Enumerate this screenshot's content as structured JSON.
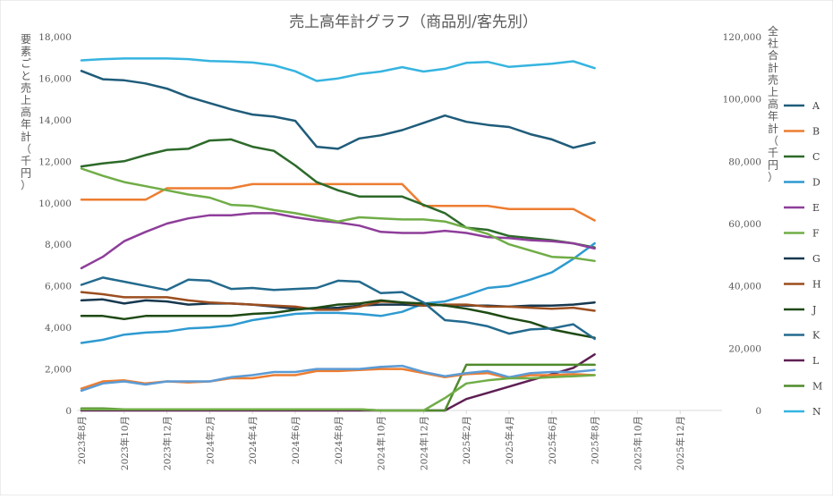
{
  "chart_data": {
    "type": "line",
    "title": "売上高年計グラフ（商品別/客先別）",
    "ylabel": "要素ごと売上高年計（千円）",
    "y2label": "全社合計売上高年計（千円）",
    "ylim": [
      0,
      18000
    ],
    "y2lim": [
      0,
      120000
    ],
    "yticks": [
      "0",
      "2,000",
      "4,000",
      "6,000",
      "8,000",
      "10,000",
      "12,000",
      "14,000",
      "16,000",
      "18,000"
    ],
    "y2ticks": [
      "0",
      "20,000",
      "40,000",
      "60,000",
      "80,000",
      "100,000",
      "120,000"
    ],
    "xticks": [
      "2023年8月",
      "2023年10月",
      "2023年12月",
      "2024年2月",
      "2024年4月",
      "2024年6月",
      "2024年8月",
      "2024年10月",
      "2024年12月",
      "2025年2月",
      "2025年4月",
      "2025年6月",
      "2025年8月",
      "2025年10月",
      "2025年12月"
    ],
    "grid": false,
    "legend": "right",
    "series": [
      {
        "name": "A",
        "color": "#1f5c7a",
        "axis": "left",
        "values": [
          16350,
          15950,
          15900,
          15750,
          15500,
          15100,
          14800,
          14500,
          14250,
          14150,
          13950,
          12700,
          12600,
          13100,
          13250,
          13500,
          13850,
          14200,
          13900,
          13750,
          13650,
          13300,
          13050,
          12650,
          12900
        ]
      },
      {
        "name": "B",
        "color": "#ed7d31",
        "axis": "left",
        "values": [
          10150,
          10150,
          10150,
          10150,
          10700,
          10700,
          10700,
          10700,
          10900,
          10900,
          10900,
          10900,
          10900,
          10900,
          10900,
          10900,
          9850,
          9850,
          9850,
          9850,
          9700,
          9700,
          9700,
          9700,
          9150
        ]
      },
      {
        "name": "C",
        "color": "#2d6a2a",
        "axis": "left",
        "values": [
          11750,
          11900,
          12000,
          12300,
          12550,
          12600,
          13000,
          13050,
          12700,
          12500,
          11800,
          11000,
          10600,
          10300,
          10300,
          10300,
          9900,
          9500,
          8800,
          8700,
          8400,
          8300,
          8200,
          8050,
          7850
        ]
      },
      {
        "name": "D",
        "color": "#2e9ad0",
        "axis": "left",
        "values": [
          3250,
          3400,
          3650,
          3750,
          3800,
          3950,
          4000,
          4100,
          4350,
          4500,
          4650,
          4700,
          4700,
          4650,
          4550,
          4750,
          5150,
          5250,
          5550,
          5900,
          6000,
          6300,
          6650,
          7300,
          8050
        ]
      },
      {
        "name": "E",
        "color": "#8e3e9a",
        "axis": "left",
        "values": [
          6850,
          7400,
          8150,
          8600,
          9000,
          9250,
          9400,
          9400,
          9500,
          9500,
          9300,
          9150,
          9050,
          8900,
          8600,
          8550,
          8550,
          8650,
          8550,
          8350,
          8300,
          8200,
          8150,
          8050,
          7800
        ]
      },
      {
        "name": "F",
        "color": "#70ad47",
        "axis": "left",
        "values": [
          11650,
          11300,
          11000,
          10800,
          10600,
          10400,
          10250,
          9900,
          9850,
          9650,
          9500,
          9300,
          9100,
          9300,
          9250,
          9200,
          9200,
          9100,
          8800,
          8500,
          8000,
          7700,
          7400,
          7350,
          7200
        ]
      },
      {
        "name": "G",
        "color": "#16384f",
        "axis": "left",
        "values": [
          5300,
          5350,
          5150,
          5300,
          5250,
          5100,
          5150,
          5150,
          5100,
          5000,
          4900,
          4900,
          4950,
          5050,
          5100,
          5100,
          5050,
          5100,
          5050,
          5050,
          5000,
          5050,
          5050,
          5100,
          5200
        ]
      },
      {
        "name": "H",
        "color": "#9c4e1f",
        "axis": "left",
        "values": [
          5700,
          5600,
          5450,
          5450,
          5450,
          5300,
          5200,
          5150,
          5100,
          5050,
          5000,
          4850,
          4850,
          5000,
          5250,
          5200,
          5050,
          5100,
          5100,
          5000,
          5000,
          4950,
          4900,
          4950,
          4800
        ]
      },
      {
        "name": "J",
        "color": "#1e4a14",
        "axis": "left",
        "values": [
          4550,
          4550,
          4400,
          4550,
          4550,
          4550,
          4550,
          4550,
          4650,
          4700,
          4850,
          4950,
          5100,
          5150,
          5300,
          5200,
          5150,
          5050,
          4900,
          4700,
          4450,
          4250,
          3900,
          3700,
          3500
        ]
      },
      {
        "name": "K",
        "color": "#236a8e",
        "axis": "left",
        "values": [
          6050,
          6400,
          6200,
          6000,
          5800,
          6300,
          6250,
          5850,
          5900,
          5800,
          5850,
          5900,
          6250,
          6200,
          5650,
          5700,
          5200,
          4350,
          4250,
          4050,
          3700,
          3900,
          3950,
          4150,
          3450
        ]
      },
      {
        "name": "L",
        "color": "#5e1f54",
        "axis": "left",
        "values": [
          0,
          0,
          0,
          0,
          0,
          0,
          0,
          0,
          0,
          0,
          0,
          0,
          0,
          0,
          0,
          0,
          0,
          0,
          550,
          850,
          1150,
          1450,
          1750,
          2050,
          2700
        ]
      },
      {
        "name": "M",
        "color": "#4f8a2c",
        "axis": "left",
        "values": [
          100,
          100,
          50,
          50,
          50,
          50,
          50,
          50,
          50,
          50,
          50,
          50,
          50,
          50,
          0,
          0,
          0,
          0,
          2200,
          2200,
          2200,
          2200,
          2200,
          2200,
          2200
        ]
      },
      {
        "name": "N",
        "color": "#36b4e0",
        "axis": "right",
        "values": [
          112400,
          112800,
          113000,
          113000,
          113000,
          112800,
          112200,
          112000,
          111700,
          110800,
          108900,
          105800,
          106600,
          108000,
          108800,
          110200,
          108800,
          109700,
          111600,
          111900,
          110300,
          110800,
          111300,
          112100,
          109900
        ]
      },
      {
        "name": "",
        "color": "#ed7d31",
        "axis": "left",
        "legend": false,
        "values": [
          1050,
          1400,
          1450,
          1300,
          1400,
          1350,
          1400,
          1550,
          1550,
          1700,
          1700,
          1900,
          1900,
          1950,
          2000,
          2000,
          1800,
          1600,
          1750,
          1800,
          1550,
          1700,
          1700,
          1750,
          1700
        ]
      },
      {
        "name": "",
        "color": "#5b9bd5",
        "axis": "left",
        "legend": false,
        "values": [
          950,
          1300,
          1400,
          1250,
          1400,
          1400,
          1400,
          1600,
          1700,
          1850,
          1850,
          2000,
          2000,
          2000,
          2100,
          2150,
          1850,
          1650,
          1800,
          1900,
          1600,
          1800,
          1850,
          1850,
          1950
        ]
      },
      {
        "name": "",
        "color": "#70ad47",
        "axis": "left",
        "legend": false,
        "values": [
          50,
          50,
          50,
          50,
          50,
          50,
          50,
          50,
          50,
          50,
          50,
          50,
          50,
          50,
          0,
          0,
          0,
          600,
          1300,
          1450,
          1550,
          1550,
          1600,
          1650,
          1700
        ]
      }
    ]
  }
}
